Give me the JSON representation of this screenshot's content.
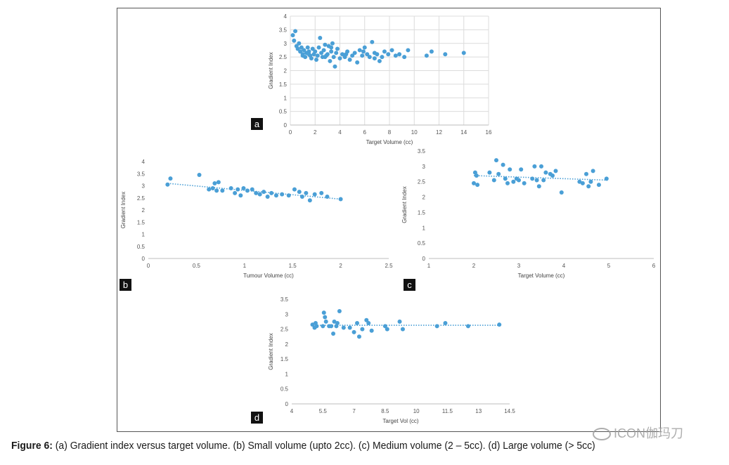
{
  "caption": {
    "prefix": "Figure 6:",
    "text": " (a) Gradient index versus target volume. (b) Small volume (upto 2cc). (c) Medium volume (2 – 5cc). (d) Large volume (> 5cc)"
  },
  "watermark": {
    "text": "ICON伽玛刀",
    "icon": "wechat-icon"
  },
  "colors": {
    "point": "#4a9fd6",
    "trend": "#4a9fd6",
    "grid": "#dcdcdc",
    "axis": "#bdbdbd"
  },
  "chart_data": [
    {
      "id": "a",
      "panel_label": "a",
      "type": "scatter",
      "xlabel": "Target Volume (cc)",
      "ylabel": "Gradient Index",
      "xlim": [
        0,
        16
      ],
      "ylim": [
        0,
        4
      ],
      "xticks": [
        "0",
        "2",
        "4",
        "6",
        "8",
        "10",
        "12",
        "14",
        "16"
      ],
      "yticks": [
        "0",
        "0.5",
        "1",
        "1.5",
        "2",
        "2.5",
        "3",
        "3.5",
        "4"
      ],
      "grid": true,
      "trendline": false,
      "points": [
        [
          0.2,
          3.3
        ],
        [
          0.4,
          3.45
        ],
        [
          0.3,
          3.1
        ],
        [
          0.5,
          2.9
        ],
        [
          0.6,
          2.8
        ],
        [
          0.7,
          3.0
        ],
        [
          0.8,
          2.7
        ],
        [
          0.9,
          2.85
        ],
        [
          1.0,
          2.6
        ],
        [
          1.1,
          2.75
        ],
        [
          1.2,
          2.5
        ],
        [
          1.3,
          2.65
        ],
        [
          1.4,
          2.85
        ],
        [
          1.5,
          2.7
        ],
        [
          1.6,
          2.55
        ],
        [
          1.7,
          2.45
        ],
        [
          1.8,
          2.8
        ],
        [
          1.9,
          2.6
        ],
        [
          2.0,
          2.7
        ],
        [
          2.1,
          2.4
        ],
        [
          2.2,
          2.55
        ],
        [
          2.3,
          2.85
        ],
        [
          2.4,
          3.2
        ],
        [
          2.5,
          2.65
        ],
        [
          2.6,
          2.5
        ],
        [
          2.7,
          2.75
        ],
        [
          2.8,
          2.95
        ],
        [
          2.9,
          2.55
        ],
        [
          3.0,
          2.6
        ],
        [
          3.1,
          2.9
        ],
        [
          3.2,
          2.35
        ],
        [
          3.3,
          2.7
        ],
        [
          3.4,
          3.0
        ],
        [
          3.5,
          2.5
        ],
        [
          3.6,
          2.15
        ],
        [
          3.7,
          2.65
        ],
        [
          3.8,
          2.8
        ],
        [
          4.0,
          2.45
        ],
        [
          4.2,
          2.6
        ],
        [
          4.4,
          2.5
        ],
        [
          4.6,
          2.7
        ],
        [
          4.8,
          2.4
        ],
        [
          5.0,
          2.55
        ],
        [
          5.2,
          2.65
        ],
        [
          5.4,
          2.3
        ],
        [
          5.6,
          2.75
        ],
        [
          5.8,
          2.55
        ],
        [
          6.0,
          2.85
        ],
        [
          6.2,
          2.6
        ],
        [
          6.4,
          2.5
        ],
        [
          6.6,
          3.05
        ],
        [
          6.8,
          2.65
        ],
        [
          7.0,
          2.6
        ],
        [
          7.2,
          2.35
        ],
        [
          7.4,
          2.5
        ],
        [
          7.6,
          2.7
        ],
        [
          7.9,
          2.6
        ],
        [
          8.2,
          2.75
        ],
        [
          8.5,
          2.55
        ],
        [
          8.8,
          2.6
        ],
        [
          9.2,
          2.5
        ],
        [
          9.5,
          2.75
        ],
        [
          11.0,
          2.55
        ],
        [
          11.4,
          2.7
        ],
        [
          12.5,
          2.6
        ],
        [
          14.0,
          2.65
        ],
        [
          1.0,
          2.55
        ],
        [
          1.5,
          2.6
        ],
        [
          2.8,
          2.5
        ],
        [
          3.3,
          2.85
        ],
        [
          4.5,
          2.6
        ],
        [
          5.9,
          2.7
        ],
        [
          6.8,
          2.45
        ]
      ]
    },
    {
      "id": "b",
      "panel_label": "b",
      "type": "scatter",
      "xlabel": "Tumour Volume (cc)",
      "ylabel": "Gradient Index",
      "xlim": [
        0,
        2.5
      ],
      "ylim": [
        0,
        4
      ],
      "xticks": [
        "0",
        "0.5",
        "1",
        "1.5",
        "2",
        "2.5"
      ],
      "yticks": [
        "0",
        "0.5",
        "1",
        "1.5",
        "2",
        "2.5",
        "3",
        "3.5",
        "4"
      ],
      "grid": false,
      "trendline": true,
      "trend": [
        [
          0.2,
          3.1
        ],
        [
          2.0,
          2.45
        ]
      ],
      "points": [
        [
          0.2,
          3.05
        ],
        [
          0.23,
          3.3
        ],
        [
          0.53,
          3.45
        ],
        [
          0.63,
          2.85
        ],
        [
          0.67,
          2.9
        ],
        [
          0.69,
          3.1
        ],
        [
          0.71,
          2.8
        ],
        [
          0.73,
          3.15
        ],
        [
          0.77,
          2.8
        ],
        [
          0.86,
          2.9
        ],
        [
          0.9,
          2.7
        ],
        [
          0.93,
          2.85
        ],
        [
          0.96,
          2.6
        ],
        [
          0.99,
          2.9
        ],
        [
          1.03,
          2.8
        ],
        [
          1.08,
          2.85
        ],
        [
          1.12,
          2.7
        ],
        [
          1.16,
          2.65
        ],
        [
          1.2,
          2.75
        ],
        [
          1.24,
          2.55
        ],
        [
          1.28,
          2.7
        ],
        [
          1.33,
          2.6
        ],
        [
          1.39,
          2.65
        ],
        [
          1.46,
          2.6
        ],
        [
          1.52,
          2.85
        ],
        [
          1.57,
          2.75
        ],
        [
          1.6,
          2.55
        ],
        [
          1.64,
          2.7
        ],
        [
          1.68,
          2.4
        ],
        [
          1.73,
          2.65
        ],
        [
          1.8,
          2.7
        ],
        [
          1.86,
          2.55
        ],
        [
          2.0,
          2.45
        ]
      ]
    },
    {
      "id": "c",
      "panel_label": "c",
      "type": "scatter",
      "xlabel": "Target Volume (cc)",
      "ylabel": "Gradient Index",
      "xlim": [
        1,
        6
      ],
      "ylim": [
        0,
        3.5
      ],
      "xticks": [
        "1",
        "2",
        "3",
        "4",
        "5",
        "6"
      ],
      "yticks": [
        "0",
        "0.5",
        "1",
        "1.5",
        "2",
        "2.5",
        "3",
        "3.5"
      ],
      "grid": false,
      "trendline": true,
      "trend": [
        [
          2.0,
          2.7
        ],
        [
          5.0,
          2.55
        ]
      ],
      "points": [
        [
          2.0,
          2.45
        ],
        [
          2.03,
          2.8
        ],
        [
          2.06,
          2.7
        ],
        [
          2.08,
          2.4
        ],
        [
          2.35,
          2.8
        ],
        [
          2.45,
          2.55
        ],
        [
          2.5,
          3.2
        ],
        [
          2.55,
          2.75
        ],
        [
          2.65,
          3.05
        ],
        [
          2.7,
          2.6
        ],
        [
          2.75,
          2.45
        ],
        [
          2.8,
          2.9
        ],
        [
          2.88,
          2.5
        ],
        [
          2.95,
          2.6
        ],
        [
          3.0,
          2.55
        ],
        [
          3.05,
          2.9
        ],
        [
          3.12,
          2.45
        ],
        [
          3.3,
          2.6
        ],
        [
          3.35,
          3.0
        ],
        [
          3.4,
          2.55
        ],
        [
          3.45,
          2.35
        ],
        [
          3.5,
          3.0
        ],
        [
          3.55,
          2.55
        ],
        [
          3.6,
          2.8
        ],
        [
          3.7,
          2.75
        ],
        [
          3.75,
          2.7
        ],
        [
          3.82,
          2.85
        ],
        [
          3.95,
          2.15
        ],
        [
          4.35,
          2.5
        ],
        [
          4.42,
          2.45
        ],
        [
          4.5,
          2.75
        ],
        [
          4.55,
          2.35
        ],
        [
          4.6,
          2.5
        ],
        [
          4.65,
          2.85
        ],
        [
          4.78,
          2.4
        ],
        [
          4.95,
          2.6
        ]
      ]
    },
    {
      "id": "d",
      "panel_label": "d",
      "type": "scatter",
      "xlabel": "Target Vol (cc)",
      "ylabel": "Gradient Index",
      "xlim": [
        4,
        14.5
      ],
      "ylim": [
        0,
        3.5
      ],
      "xticks": [
        "4",
        "5.5",
        "7",
        "8.5",
        "10",
        "11.5",
        "13",
        "14.5"
      ],
      "xtick_values": [
        4,
        5.5,
        7,
        8.5,
        10,
        11.5,
        13,
        14.5
      ],
      "yticks": [
        "0",
        "0.5",
        "1",
        "1.5",
        "2",
        "2.5",
        "3",
        "3.5"
      ],
      "grid": false,
      "trendline": true,
      "trend": [
        [
          5.0,
          2.63
        ],
        [
          14.0,
          2.63
        ]
      ],
      "points": [
        [
          5.0,
          2.65
        ],
        [
          5.1,
          2.55
        ],
        [
          5.15,
          2.7
        ],
        [
          5.2,
          2.6
        ],
        [
          5.5,
          2.6
        ],
        [
          5.55,
          3.05
        ],
        [
          5.6,
          2.9
        ],
        [
          5.65,
          2.75
        ],
        [
          5.8,
          2.6
        ],
        [
          5.9,
          2.6
        ],
        [
          6.0,
          2.35
        ],
        [
          6.05,
          2.75
        ],
        [
          6.15,
          2.6
        ],
        [
          6.2,
          2.7
        ],
        [
          6.3,
          3.1
        ],
        [
          6.5,
          2.55
        ],
        [
          6.8,
          2.55
        ],
        [
          7.0,
          2.4
        ],
        [
          7.15,
          2.7
        ],
        [
          7.25,
          2.25
        ],
        [
          7.4,
          2.5
        ],
        [
          7.6,
          2.8
        ],
        [
          7.7,
          2.7
        ],
        [
          7.85,
          2.45
        ],
        [
          8.5,
          2.6
        ],
        [
          8.6,
          2.5
        ],
        [
          9.2,
          2.75
        ],
        [
          9.35,
          2.5
        ],
        [
          11.0,
          2.6
        ],
        [
          11.4,
          2.7
        ],
        [
          12.5,
          2.6
        ],
        [
          14.0,
          2.65
        ]
      ]
    }
  ]
}
